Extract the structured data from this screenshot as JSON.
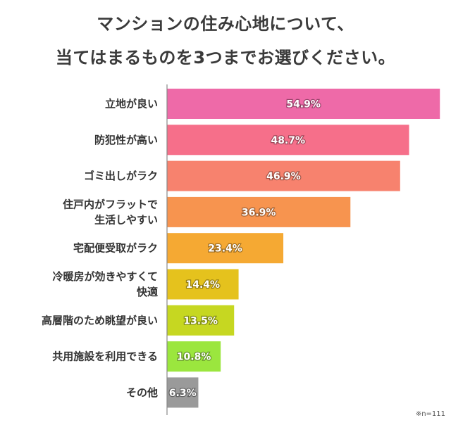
{
  "title_lines": [
    "マンションの住み心地について、",
    "当てはまるものを3つまでお選びください。"
  ],
  "note": "※n=111",
  "chart_data": {
    "type": "bar",
    "orientation": "horizontal",
    "categories": [
      [
        "立地が良い"
      ],
      [
        "防犯性が高い"
      ],
      [
        "ゴミ出しがラク"
      ],
      [
        "住戸内がフラットで",
        "生活しやすい"
      ],
      [
        "宅配便受取がラク"
      ],
      [
        "冷暖房が効きやすくて",
        "快適"
      ],
      [
        "高層階のため眺望が良い"
      ],
      [
        "共用施設を利用できる"
      ],
      [
        "その他"
      ]
    ],
    "values": [
      54.9,
      48.7,
      46.9,
      36.9,
      23.4,
      14.4,
      13.5,
      10.8,
      6.3
    ],
    "value_labels": [
      "54.9%",
      "48.7%",
      "46.9%",
      "36.9%",
      "23.4%",
      "14.4%",
      "13.5%",
      "10.8%",
      "6.3%"
    ],
    "colors": [
      "#ee6aa8",
      "#f66f8a",
      "#f7826e",
      "#f7944f",
      "#f5a933",
      "#e5c21d",
      "#c6d721",
      "#9be63e",
      "#9a9a9a"
    ],
    "xlim": [
      0,
      56
    ],
    "grid": false,
    "legend": "none"
  }
}
